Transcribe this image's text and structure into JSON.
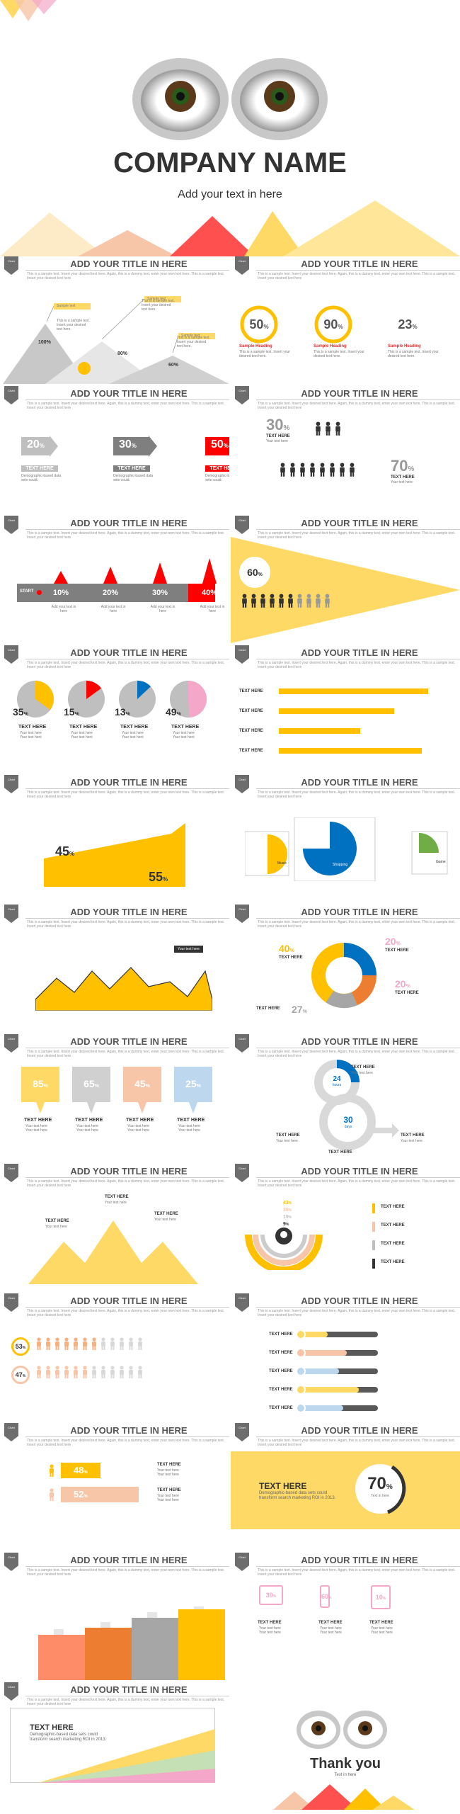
{
  "cover": {
    "company": "COMPANY NAME",
    "tagline": "Add your text in here"
  },
  "common": {
    "badge": "Chart",
    "title": "ADD YOUR TITLE IN HERE",
    "sub": "This is a sample text. Insert your desired text here. Again, this is a dummy text, enter your own text here. This is a sample text. Insert your desired text here",
    "text_here": "TEXT HERE",
    "your_text": "Your text here",
    "sample_text": "This is a sample text. Insert your desired text here.",
    "demographic": "Demographic-based data sets could.",
    "text_in_here": "Text in here"
  },
  "colors": {
    "yellow": "#ffc000",
    "red": "#ff0000",
    "peach": "#f7c5a8",
    "gray": "#a6a6a6",
    "blue": "#0070c0",
    "pink": "#f4a7c8",
    "orange": "#ed7d31"
  },
  "s1": {
    "mountain_labels": [
      "100%",
      "80%",
      "60%"
    ],
    "tag": "Sample text"
  },
  "s2": {
    "rings": [
      {
        "value": "50",
        "unit": "%",
        "heading": "Sample Heading"
      },
      {
        "value": "90",
        "unit": "%",
        "heading": "Sample Heading"
      },
      {
        "value": "23",
        "unit": "%",
        "heading": "Sample Heading"
      }
    ]
  },
  "s3": {
    "arrows": [
      "20",
      "30",
      "50"
    ],
    "unit": "%"
  },
  "s4": {
    "top": "30",
    "bottom": "70",
    "unit": "%"
  },
  "s5": {
    "start": "START",
    "steps": [
      "10%",
      "20%",
      "30%",
      "40%"
    ],
    "caption": "Add your text in here"
  },
  "s6": {
    "value": "60",
    "unit": "%"
  },
  "s7": {
    "pies": [
      {
        "value": "35",
        "pct": 0.35,
        "color": "#ffc000"
      },
      {
        "value": "15",
        "pct": 0.15,
        "color": "#ff0000"
      },
      {
        "value": "13",
        "pct": 0.13,
        "color": "#0070c0"
      },
      {
        "value": "49",
        "pct": 0.49,
        "color": "#f4a7c8"
      }
    ],
    "unit": "%"
  },
  "s8": {
    "bars": [
      0.88,
      0.68,
      0.48,
      0.84
    ]
  },
  "s9": {
    "a": "45",
    "b": "55",
    "unit": "%"
  },
  "s10": {
    "labels": [
      "Music",
      "Shopping",
      "Game"
    ]
  },
  "s11": {
    "tag": "Your text here"
  },
  "s12": {
    "p1": "40",
    "p2": "20",
    "p3": "20",
    "p4": "27",
    "unit": "%"
  },
  "s13": {
    "cards": [
      {
        "v": "85",
        "c": "#ffd966"
      },
      {
        "v": "65",
        "c": "#d0d0d0"
      },
      {
        "v": "45",
        "c": "#f7c5a8"
      },
      {
        "v": "25",
        "c": "#bdd7ee"
      }
    ],
    "unit": "%"
  },
  "s14": {
    "hours": "24",
    "hours_label": "hours",
    "days": "30",
    "days_label": "days"
  },
  "s16": {
    "vals": [
      "43",
      "30",
      "19",
      "9"
    ],
    "unit": "%"
  },
  "s17": {
    "a": "53",
    "b": "47",
    "unit": "%"
  },
  "s18": {
    "bars": [
      0.35,
      0.6,
      0.5,
      0.75,
      0.55
    ]
  },
  "s19": {
    "a": "48",
    "b": "52",
    "unit": "%"
  },
  "s20": {
    "value": "70",
    "unit": "%",
    "head": "TEXT HERE",
    "body": "Demographic-based data sets could transform search marketing ROI in 2013."
  },
  "s21": {
    "devices": [
      "30",
      "60",
      "10"
    ],
    "unit": "%"
  },
  "s22": {
    "head": "TEXT HERE",
    "body": "Demographic-based data sets could transform search marketing ROI in 2013."
  },
  "end": {
    "thanks": "Thank you",
    "sub": "Text in here"
  }
}
